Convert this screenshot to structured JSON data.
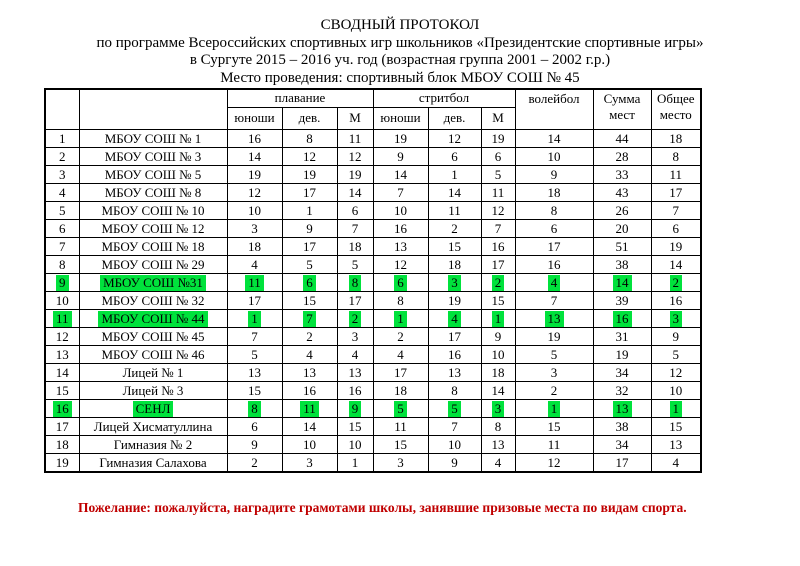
{
  "header": {
    "title": "СВОДНЫЙ ПРОТОКОЛ",
    "line2": "по программе Всероссийских спортивных игр школьников «Президентские спортивные игры»",
    "line3": "в Сургуте 2015 – 2016 уч. год (возрастная группа 2001 – 2002 г.р.)",
    "line4": "Место проведения: спортивный блок МБОУ СОШ № 45"
  },
  "table": {
    "group_headers": {
      "swimming": "плавание",
      "streetball": "стритбол",
      "volleyball": "волейбол",
      "sum_of_places": "Сумма мест",
      "overall_place": "Общее место"
    },
    "sub_headers": {
      "boys": "юноши",
      "girls": "дев.",
      "m": "М"
    },
    "columns": [
      "rank",
      "school",
      "swim_boys",
      "swim_girls",
      "swim_m",
      "streetball_boys",
      "streetball_girls",
      "streetball_m",
      "volleyball",
      "sum_of_places",
      "overall_place"
    ],
    "rows": [
      {
        "cells": [
          "1",
          "МБОУ СОШ № 1",
          "16",
          "8",
          "11",
          "19",
          "12",
          "19",
          "14",
          "44",
          "18"
        ],
        "highlight": false
      },
      {
        "cells": [
          "2",
          "МБОУ СОШ № 3",
          "14",
          "12",
          "12",
          "9",
          "6",
          "6",
          "10",
          "28",
          "8"
        ],
        "highlight": false
      },
      {
        "cells": [
          "3",
          "МБОУ СОШ № 5",
          "19",
          "19",
          "19",
          "14",
          "1",
          "5",
          "9",
          "33",
          "11"
        ],
        "highlight": false
      },
      {
        "cells": [
          "4",
          "МБОУ СОШ № 8",
          "12",
          "17",
          "14",
          "7",
          "14",
          "11",
          "18",
          "43",
          "17"
        ],
        "highlight": false
      },
      {
        "cells": [
          "5",
          "МБОУ СОШ № 10",
          "10",
          "1",
          "6",
          "10",
          "11",
          "12",
          "8",
          "26",
          "7"
        ],
        "highlight": false
      },
      {
        "cells": [
          "6",
          "МБОУ СОШ № 12",
          "3",
          "9",
          "7",
          "16",
          "2",
          "7",
          "6",
          "20",
          "6"
        ],
        "highlight": false
      },
      {
        "cells": [
          "7",
          "МБОУ СОШ № 18",
          "18",
          "17",
          "18",
          "13",
          "15",
          "16",
          "17",
          "51",
          "19"
        ],
        "highlight": false
      },
      {
        "cells": [
          "8",
          "МБОУ СОШ № 29",
          "4",
          "5",
          "5",
          "12",
          "18",
          "17",
          "16",
          "38",
          "14"
        ],
        "highlight": false
      },
      {
        "cells": [
          "9",
          "МБОУ СОШ №31",
          "11",
          "6",
          "8",
          "6",
          "3",
          "2",
          "4",
          "14",
          "2"
        ],
        "highlight": true
      },
      {
        "cells": [
          "10",
          "МБОУ СОШ № 32",
          "17",
          "15",
          "17",
          "8",
          "19",
          "15",
          "7",
          "39",
          "16"
        ],
        "highlight": false
      },
      {
        "cells": [
          "11",
          "МБОУ СОШ № 44",
          "1",
          "7",
          "2",
          "1",
          "4",
          "1",
          "13",
          "16",
          "3"
        ],
        "highlight": true
      },
      {
        "cells": [
          "12",
          "МБОУ СОШ № 45",
          "7",
          "2",
          "3",
          "2",
          "17",
          "9",
          "19",
          "31",
          "9"
        ],
        "highlight": false
      },
      {
        "cells": [
          "13",
          "МБОУ СОШ № 46",
          "5",
          "4",
          "4",
          "4",
          "16",
          "10",
          "5",
          "19",
          "5"
        ],
        "highlight": false
      },
      {
        "cells": [
          "14",
          "Лицей № 1",
          "13",
          "13",
          "13",
          "17",
          "13",
          "18",
          "3",
          "34",
          "12"
        ],
        "highlight": false
      },
      {
        "cells": [
          "15",
          "Лицей № 3",
          "15",
          "16",
          "16",
          "18",
          "8",
          "14",
          "2",
          "32",
          "10"
        ],
        "highlight": false
      },
      {
        "cells": [
          "16",
          "СЕНЛ",
          "8",
          "11",
          "9",
          "5",
          "5",
          "3",
          "1",
          "13",
          "1"
        ],
        "highlight": true
      },
      {
        "cells": [
          "17",
          "Лицей Хисматуллина",
          "6",
          "14",
          "15",
          "11",
          "7",
          "8",
          "15",
          "38",
          "15"
        ],
        "highlight": false
      },
      {
        "cells": [
          "18",
          "Гимназия № 2",
          "9",
          "10",
          "10",
          "15",
          "10",
          "13",
          "11",
          "34",
          "13"
        ],
        "highlight": false
      },
      {
        "cells": [
          "19",
          "Гимназия Салахова",
          "2",
          "3",
          "1",
          "3",
          "9",
          "4",
          "12",
          "17",
          "4"
        ],
        "highlight": false
      }
    ]
  },
  "note": "Пожелание: пожалуйста, наградите грамотами школы, занявшие призовые места по видам спорта.",
  "colors": {
    "highlight_green": "#00e23c",
    "note_red": "#c00000"
  }
}
